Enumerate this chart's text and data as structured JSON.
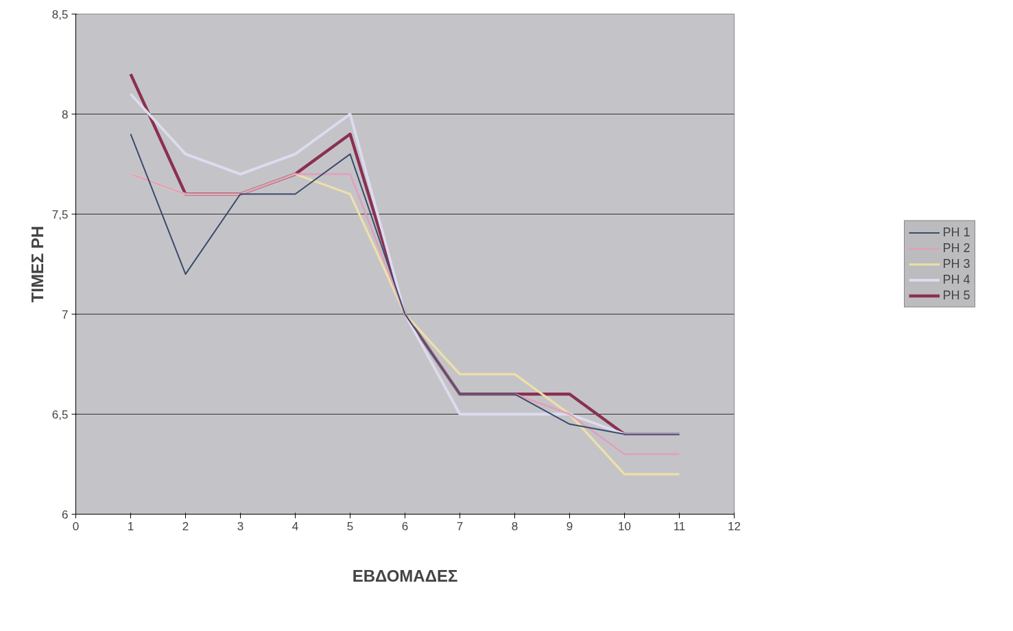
{
  "chart_data": {
    "type": "line",
    "xlabel": "ΕΒΔΟΜΑΔΕΣ",
    "ylabel": "ΤΙΜΕΣ PH",
    "x": [
      1,
      2,
      3,
      4,
      5,
      6,
      7,
      8,
      9,
      10,
      11
    ],
    "series": [
      {
        "name": "PH 1",
        "color": "#3b4a6b",
        "values": [
          7.9,
          7.2,
          7.6,
          7.6,
          7.8,
          7.0,
          6.6,
          6.6,
          6.45,
          6.4,
          6.4
        ]
      },
      {
        "name": "PH 2",
        "color": "#e0a0bc",
        "values": [
          7.7,
          7.6,
          7.6,
          7.7,
          7.7,
          7.0,
          6.6,
          6.6,
          6.5,
          6.3,
          6.3
        ]
      },
      {
        "name": "PH 3",
        "color": "#eee0a8",
        "values": [
          7.7,
          7.6,
          7.6,
          7.7,
          7.6,
          7.0,
          6.7,
          6.7,
          6.5,
          6.2,
          6.2
        ]
      },
      {
        "name": "PH 4",
        "color": "#dcdcf0",
        "values": [
          8.1,
          7.8,
          7.7,
          7.8,
          8.0,
          7.0,
          6.5,
          6.5,
          6.5,
          6.4,
          6.4
        ]
      },
      {
        "name": "PH 5",
        "color": "#8a3050",
        "values": [
          8.2,
          7.6,
          7.6,
          7.7,
          7.9,
          7.0,
          6.6,
          6.6,
          6.6,
          6.4,
          6.4
        ]
      }
    ],
    "xlim": [
      0,
      12
    ],
    "xticks": [
      0,
      1,
      2,
      3,
      4,
      5,
      6,
      7,
      8,
      9,
      10,
      11,
      12
    ],
    "ylim": [
      6,
      8.5
    ],
    "yticks": [
      6,
      {
        "value": 6.5,
        "label": "6,5"
      },
      7,
      {
        "value": 7.5,
        "label": "7,5"
      },
      8,
      {
        "value": 8.5,
        "label": "8,5"
      }
    ],
    "grid": "y",
    "legend": "right",
    "marker": "none",
    "line_style": "solid"
  }
}
